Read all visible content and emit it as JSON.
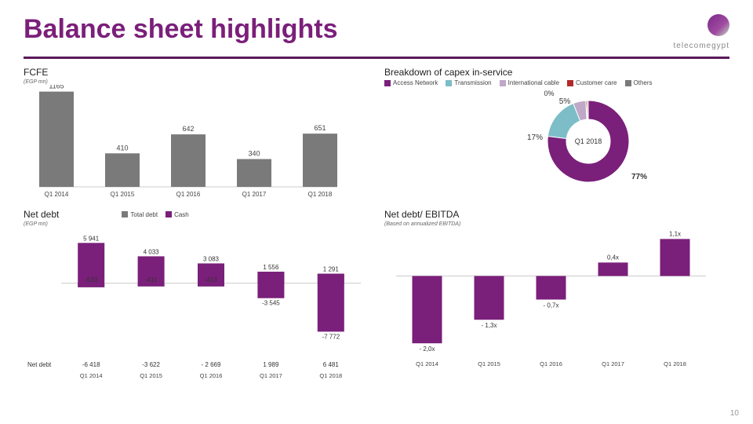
{
  "page": {
    "title": "Balance sheet highlights",
    "title_color": "#7a1f7a",
    "number": "10",
    "logo_text": "telecomegypt"
  },
  "colors": {
    "purple": "#7a1f7a",
    "grey": "#7a7a7a",
    "teal": "#7dbdc8",
    "light": "#c8a8c8",
    "brown": "#b22a2a",
    "axis": "#666"
  },
  "fcfe": {
    "title": "FCFE",
    "sub": "(EGP mn)",
    "categories": [
      "Q1 2014",
      "Q1 2015",
      "Q1 2016",
      "Q1 2017",
      "Q1 2018"
    ],
    "values": [
      1165,
      410,
      642,
      340,
      651
    ],
    "bar_color": "#7a7a7a",
    "label_fontsize": 9
  },
  "capex": {
    "title": "Breakdown of capex in-service",
    "legend": [
      "Access Network",
      "Transmission",
      "International cable",
      "Customer care",
      "Others"
    ],
    "legend_colors": [
      "#7a1f7a",
      "#7dbdc8",
      "#c0a8c8",
      "#b22a2a",
      "#7a7a7a"
    ],
    "center_label": "Q1 2018",
    "slices": [
      {
        "label": "77%",
        "value": 77,
        "color": "#7a1f7a"
      },
      {
        "label": "17%",
        "value": 17,
        "color": "#7dbdc8"
      },
      {
        "label": "5%",
        "value": 5,
        "color": "#c0a8c8"
      },
      {
        "label": "0%",
        "value": 0.5,
        "color": "#b22a2a"
      },
      {
        "label": "",
        "value": 0.5,
        "color": "#7a7a7a"
      }
    ],
    "annot_0": "0%",
    "annot_5": "5%",
    "annot_17": "17%",
    "annot_77": "77%"
  },
  "netdebt": {
    "title": "Net debt",
    "sub": "(EGP mn)",
    "legend": [
      "Total debt",
      "Cash"
    ],
    "legend_colors": [
      "#7a7a7a",
      "#7a1f7a"
    ],
    "categories": [
      "Q1 2014",
      "Q1 2015",
      "Q1 2016",
      "Q1 2017",
      "Q1 2018"
    ],
    "debt": [
      -523,
      -411,
      -413,
      1556,
      1291
    ],
    "cash": [
      5941,
      4033,
      3083,
      -3545,
      -7772
    ],
    "netdebt": [
      "-6 418",
      "-3 622",
      "- 2 669",
      "1 989",
      "6 481"
    ],
    "net_label": "Net debt",
    "debt_labels": [
      "-523",
      "-411",
      "-413",
      "1 556",
      "1 291"
    ],
    "cash_labels": [
      "5 941",
      "4 033",
      "3 083",
      "-3 545",
      "-7 772"
    ]
  },
  "ratio": {
    "title": "Net debt/ EBITDA",
    "sub": "(Based on annualized EBITDA)",
    "categories": [
      "Q1 2014",
      "Q1 2015",
      "Q1 2016",
      "Q1 2017",
      "Q1 2018"
    ],
    "values": [
      -2.0,
      -1.3,
      -0.7,
      0.4,
      1.1
    ],
    "labels": [
      "- 2,0x",
      "- 1,3x",
      "- 0,7x",
      "0,4x",
      "1,1x"
    ],
    "bar_color": "#7a1f7a"
  }
}
